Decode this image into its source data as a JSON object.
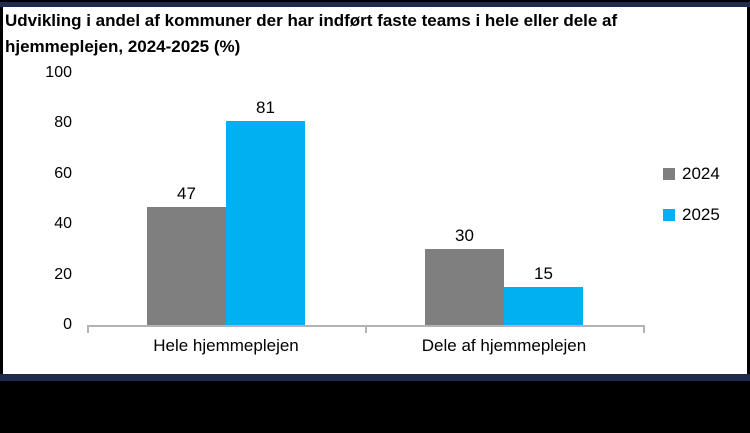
{
  "frame": {
    "background_color": "#FFFFFF",
    "border_navy_color": "#1F2A4D",
    "bottom_band_color": "#000000"
  },
  "chart_data": {
    "type": "bar",
    "title": "Udvikling i andel af kommuner der har indført faste teams i hele eller dele af hjemmeplejen, 2024-2025 (%)",
    "categories": [
      "Hele hjemmeplejen",
      "Dele af hjemmeplejen"
    ],
    "series": [
      {
        "name": "2024",
        "color": "#7F7F7F",
        "values": [
          47,
          30
        ]
      },
      {
        "name": "2025",
        "color": "#00B0F0",
        "values": [
          81,
          15
        ]
      }
    ],
    "ylim": [
      0,
      100
    ],
    "y_ticks": [
      0,
      20,
      40,
      60,
      80,
      100
    ],
    "xlabel": "",
    "ylabel": "",
    "legend_position": "right",
    "grid": false,
    "axis_color": "#B3B3B3",
    "text_color": "#000000"
  }
}
